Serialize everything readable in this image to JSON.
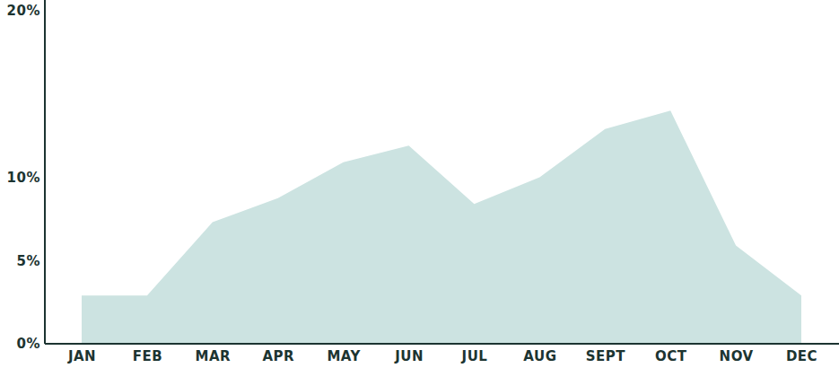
{
  "chart_data": {
    "type": "area",
    "categories": [
      "JAN",
      "FEB",
      "MAR",
      "APR",
      "MAY",
      "JUN",
      "JUL",
      "AUG",
      "SEPT",
      "OCT",
      "NOV",
      "DEC"
    ],
    "values": [
      2.9,
      2.9,
      7.3,
      8.75,
      10.9,
      11.9,
      8.4,
      10.0,
      12.9,
      14.0,
      5.9,
      2.9
    ],
    "color": "#cce3e1",
    "ylim": [
      0,
      20
    ],
    "yticks": [
      {
        "value": 0,
        "label": "0%"
      },
      {
        "value": 5,
        "label": "5%"
      },
      {
        "value": 10,
        "label": "10%"
      },
      {
        "value": 20,
        "label": "20%"
      }
    ],
    "grid": false
  }
}
